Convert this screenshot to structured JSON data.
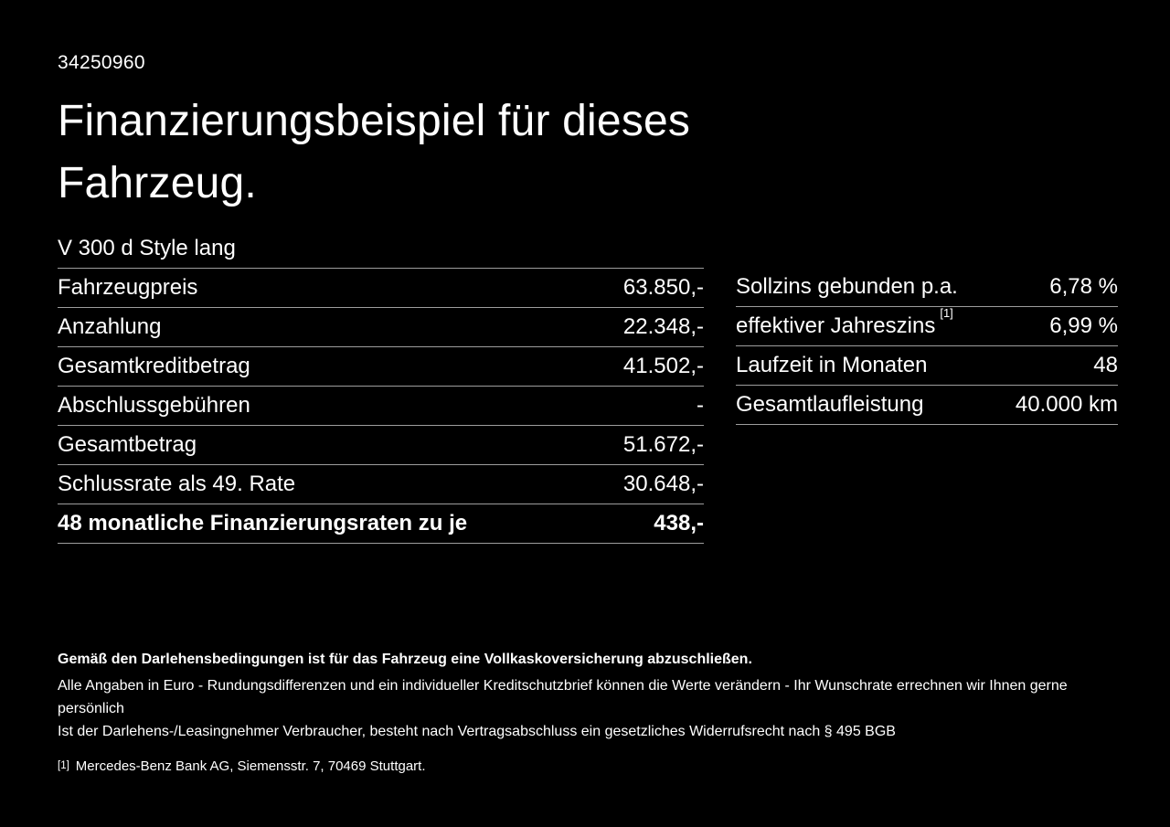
{
  "page": {
    "background_color": "#000000",
    "text_color": "#ffffff",
    "divider_color": "#9d9d9d"
  },
  "header": {
    "listing_id": "34250960",
    "title": "Finanzierungsbeispiel für dieses Fahrzeug.",
    "vehicle_model": "V 300 d Style lang"
  },
  "finance_table": {
    "rows": [
      {
        "label": "Fahrzeugpreis",
        "value": "63.850,-"
      },
      {
        "label": "Anzahlung",
        "value": "22.348,-"
      },
      {
        "label": "Gesamtkreditbetrag",
        "value": "41.502,-"
      },
      {
        "label": "Abschlussgebühren",
        "value": "-"
      },
      {
        "label": "Gesamtbetrag",
        "value": "51.672,-"
      },
      {
        "label": "Schlussrate als 49. Rate",
        "value": "30.648,-"
      },
      {
        "label": "48 monatliche Finanzierungsraten zu je",
        "value": "438,-"
      }
    ]
  },
  "conditions_table": {
    "rows": [
      {
        "label": "Sollzins gebunden p.a.",
        "sup": "",
        "value": "6,78 %"
      },
      {
        "label": "effektiver Jahreszins",
        "sup": "[1]",
        "value": "6,99 %"
      },
      {
        "label": "Laufzeit in Monaten",
        "sup": "",
        "value": "48"
      },
      {
        "label": "Gesamtlaufleistung",
        "sup": "",
        "value": "40.000 km"
      }
    ]
  },
  "footer": {
    "insurance_note": "Gemäß den Darlehensbedingungen ist für das Fahrzeug eine Vollkaskoversicherung abzuschließen.",
    "disclaimer_line1": "Alle Angaben in Euro - Rundungsdifferenzen und ein individueller Kreditschutzbrief können die Werte verändern - Ihr Wunschrate errechnen wir Ihnen gerne persönlich",
    "disclaimer_line2": "Ist der Darlehens-/Leasingnehmer Verbraucher, besteht nach Vertragsabschluss ein gesetzliches Widerrufsrecht nach § 495 BGB",
    "footnote_marker": "[1]",
    "footnote_text": "Mercedes-Benz Bank AG, Siemensstr. 7, 70469 Stuttgart."
  }
}
